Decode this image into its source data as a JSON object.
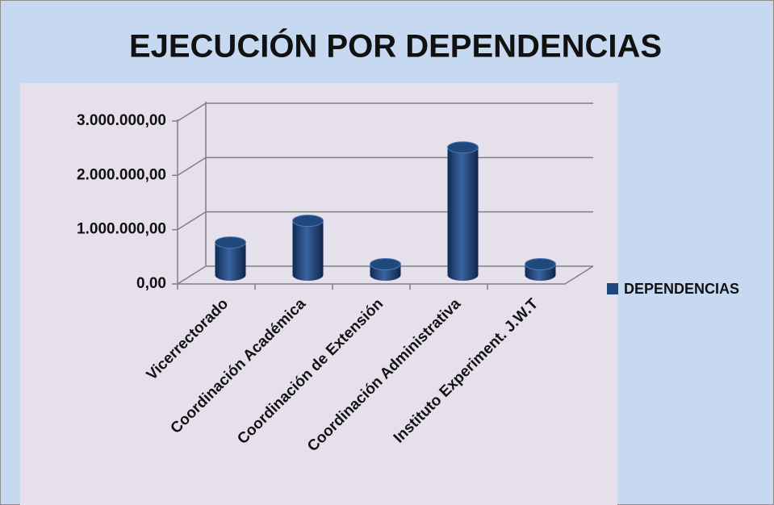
{
  "chart_data": {
    "type": "bar3d",
    "title": "EJECUCIÓN POR DEPENDENCIAS",
    "categories": [
      "Vicerrectorado",
      "Coordinación Académica",
      "Coordinación de Extensión",
      "Coordinación Administrativa",
      "Instituto Experiment. J.W.T"
    ],
    "series": [
      {
        "name": "DEPENDENCIAS",
        "color": "#1f497d",
        "values": [
          600000,
          1000000,
          200000,
          2350000,
          200000
        ]
      }
    ],
    "ylim": [
      0,
      3000000
    ],
    "yticks": [
      {
        "value": 0,
        "label": "0,00"
      },
      {
        "value": 1000000,
        "label": "1.000.000,00"
      },
      {
        "value": 2000000,
        "label": "2.000.000,00"
      },
      {
        "value": 3000000,
        "label": "3.000.000,00"
      }
    ],
    "grid": true,
    "legend": "right"
  }
}
